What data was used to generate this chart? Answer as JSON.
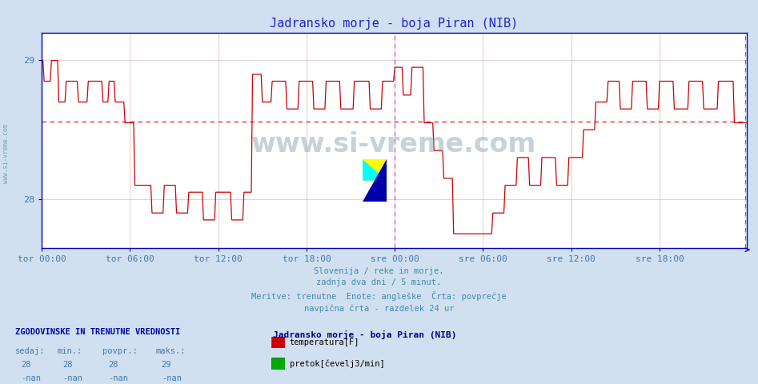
{
  "title": "Jadransko morje - boja Piran (NIB)",
  "title_color": "#2222cc",
  "bg_color": "#d0e0f0",
  "plot_bg_color": "#ffffff",
  "grid_color": "#ddbbbb",
  "axis_color": "#0000bb",
  "line_color": "#cc0000",
  "avg_line_color": "#cc0000",
  "vline_color": "#bb44bb",
  "watermark_text": "www.si-vreme.com",
  "watermark_color": "#8899aa",
  "side_label_color": "#5588aa",
  "xlabel_color": "#4477aa",
  "ylim": [
    27.65,
    29.2
  ],
  "yticks": [
    28,
    29
  ],
  "xtick_labels": [
    "tor 00:00",
    "tor 06:00",
    "tor 12:00",
    "tor 18:00",
    "sre 00:00",
    "sre 06:00",
    "sre 12:00",
    "sre 18:00"
  ],
  "xtick_positions": [
    0,
    72,
    144,
    216,
    288,
    360,
    432,
    504
  ],
  "total_points": 576,
  "avg_value": 28.56,
  "vline_positions": [
    288,
    574
  ],
  "footer_lines": [
    "Slovenija / reke in morje.",
    "zadnja dva dni / 5 minut.",
    "Meritve: trenutne  Enote: angleške  Črta: povprečje",
    "navpična črta - razdelek 24 ur"
  ],
  "footer_color": "#4488aa",
  "legend_title": "Jadransko morje - boja Piran (NIB)",
  "legend_color": "#000088",
  "table_header": "ZGODOVINSKE IN TRENUTNE VREDNOSTI",
  "table_cols": [
    "sedaj:",
    "min.:",
    "povpr.:",
    "maks.:"
  ],
  "table_row1": [
    "28",
    "28",
    "28",
    "29"
  ],
  "table_row2": [
    "-nan",
    "-nan",
    "-nan",
    "-nan"
  ],
  "legend_items": [
    {
      "label": "temperatura[F]",
      "color": "#cc0000"
    },
    {
      "label": "pretok[čevelj3/min]",
      "color": "#00aa00"
    }
  ],
  "watermark_fontsize": 24,
  "title_fontsize": 11
}
